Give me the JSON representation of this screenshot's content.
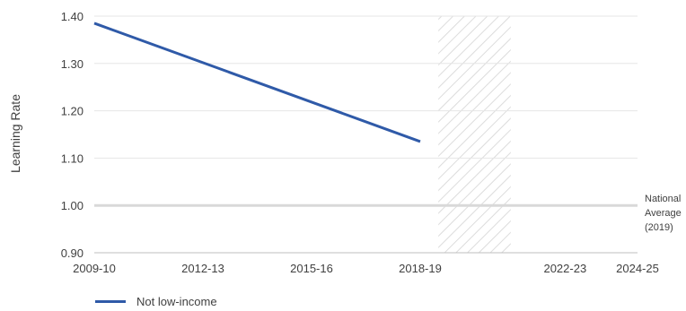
{
  "chart_data": {
    "type": "line",
    "ylabel": "Learning Rate",
    "ylim": [
      0.9,
      1.4
    ],
    "yticks": [
      0.9,
      1.0,
      1.1,
      1.2,
      1.3,
      1.4
    ],
    "ytick_labels": [
      "0.90",
      "1.00",
      "1.10",
      "1.20",
      "1.30",
      "1.40"
    ],
    "xlim": [
      0,
      15
    ],
    "x_ticks": [
      {
        "pos": 0,
        "label": "2009-10"
      },
      {
        "pos": 3,
        "label": "2012-13"
      },
      {
        "pos": 6,
        "label": "2015-16"
      },
      {
        "pos": 9,
        "label": "2018-19"
      },
      {
        "pos": 13,
        "label": "2022-23"
      },
      {
        "pos": 15,
        "label": "2024-25"
      }
    ],
    "grid": "horizontal",
    "series": [
      {
        "name": "Not low-income",
        "color": "#2f5aa8",
        "x": [
          0,
          9
        ],
        "y": [
          1.385,
          1.135
        ]
      }
    ],
    "reference_line": {
      "y": 1.0,
      "label_lines": [
        "National",
        "Average",
        "(2019)"
      ],
      "color": "#d9d9d9"
    },
    "hatched_region": {
      "x_start": 9.5,
      "x_end": 11.5
    },
    "legend_position": "bottom-left"
  }
}
